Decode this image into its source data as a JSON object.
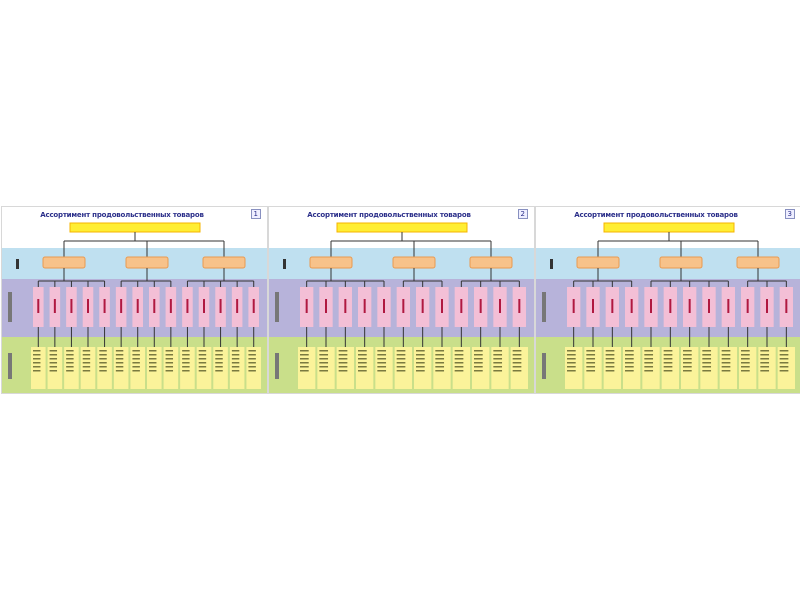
{
  "slides": [
    {
      "title": "Ассортимент продовольственных товаров",
      "number": "1",
      "groups": [
        5,
        4,
        5
      ]
    },
    {
      "title": "Ассортимент продовольственных товаров",
      "number": "2",
      "groups": [
        5,
        3,
        4
      ]
    },
    {
      "title": "Ассортимент продовольственных товаров",
      "number": "3",
      "groups": [
        4,
        5,
        3
      ]
    }
  ],
  "colors": {
    "band_top": "#ffffff",
    "band_blue": "#bfe0f0",
    "band_purple": "#b7b3da",
    "band_green": "#c9df8a",
    "root_box": "#ffee33",
    "group_box": "#f7c28a",
    "leaf_box": "#f3bfd6",
    "detail_box": "#fbf39a",
    "title": "#2b2f8a"
  }
}
